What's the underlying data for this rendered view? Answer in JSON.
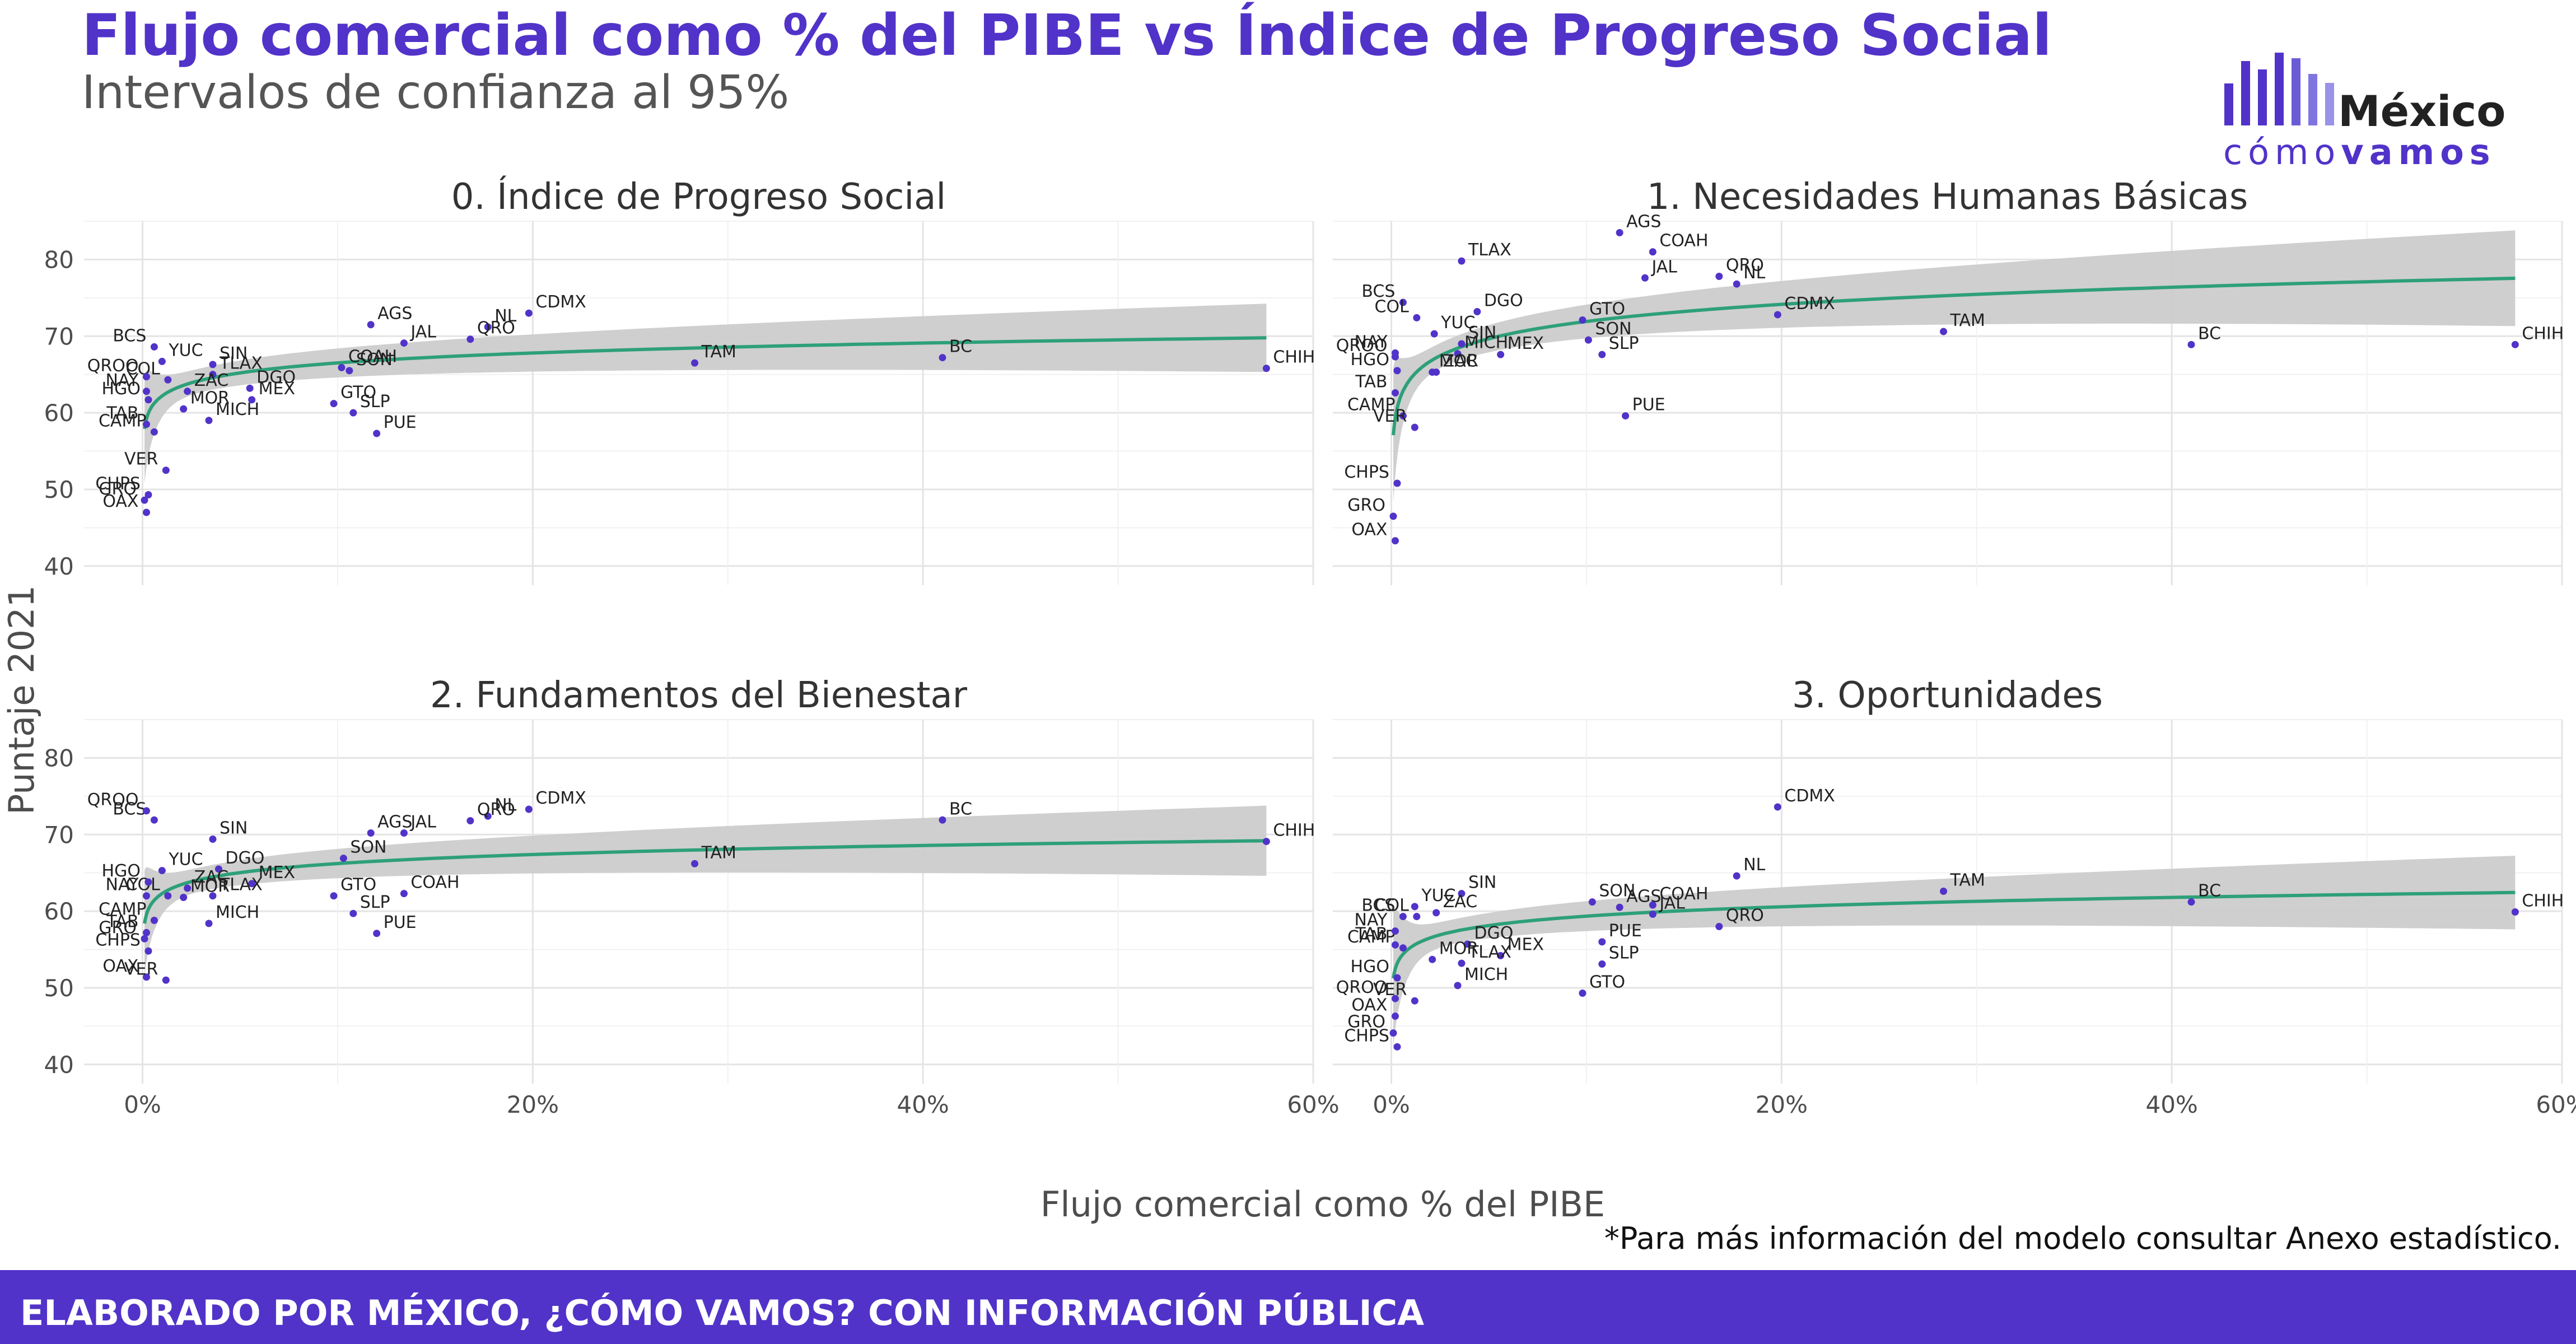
{
  "title": "Flujo comercial como % del PIBE vs Índice de Progreso Social",
  "subtitle": "Intervalos de confianza al 95%",
  "logo": {
    "word1": "México",
    "word2a": "cómo",
    "word2b": "vamos"
  },
  "note": "*Para más información del modelo consultar Anexo estadístico.",
  "footer": "ELABORADO POR MÉXICO, ¿CÓMO VAMOS? CON INFORMACIÓN PÚBLICA",
  "colors": {
    "accent": "#5133c9",
    "fit": "#2ea079",
    "band": "#cccccc",
    "point": "#5133c9"
  },
  "chart_data": {
    "type": "scatter",
    "xlabel": "Flujo comercial como % del PIBE",
    "ylabel": "Puntaje 2021",
    "xlim": [
      -3,
      60
    ],
    "ylim": [
      37.5,
      85
    ],
    "xticks": [
      0,
      20,
      40,
      60
    ],
    "xtick_labels": [
      "0%",
      "20%",
      "40%",
      "60%"
    ],
    "yticks": [
      40,
      50,
      60,
      70,
      80
    ],
    "grid": true,
    "panels": [
      {
        "title": "0. Índice de Progreso Social",
        "points": [
          {
            "label": "AGS",
            "x": 11.7,
            "y": 71.5
          },
          {
            "label": "BC",
            "x": 41.0,
            "y": 67.2
          },
          {
            "label": "BCS",
            "x": 0.6,
            "y": 68.6
          },
          {
            "label": "CAMP",
            "x": 0.6,
            "y": 57.5
          },
          {
            "label": "CDMX",
            "x": 19.8,
            "y": 73.0
          },
          {
            "label": "CHIH",
            "x": 57.6,
            "y": 65.8
          },
          {
            "label": "CHPS",
            "x": 0.3,
            "y": 49.3
          },
          {
            "label": "COAH",
            "x": 10.2,
            "y": 65.9
          },
          {
            "label": "COL",
            "x": 1.3,
            "y": 64.3
          },
          {
            "label": "DGO",
            "x": 5.5,
            "y": 63.2
          },
          {
            "label": "GRO",
            "x": 0.1,
            "y": 48.6
          },
          {
            "label": "GTO",
            "x": 9.8,
            "y": 61.2
          },
          {
            "label": "HGO",
            "x": 0.3,
            "y": 61.7
          },
          {
            "label": "JAL",
            "x": 13.4,
            "y": 69.1
          },
          {
            "label": "MEX",
            "x": 5.6,
            "y": 61.7
          },
          {
            "label": "MICH",
            "x": 3.4,
            "y": 59.0
          },
          {
            "label": "MOR",
            "x": 2.1,
            "y": 60.5
          },
          {
            "label": "NAY",
            "x": 0.2,
            "y": 62.8
          },
          {
            "label": "NL",
            "x": 17.7,
            "y": 71.2
          },
          {
            "label": "OAX",
            "x": 0.2,
            "y": 47.0
          },
          {
            "label": "PUE",
            "x": 12.0,
            "y": 57.3
          },
          {
            "label": "QRO",
            "x": 16.8,
            "y": 69.6
          },
          {
            "label": "QROO",
            "x": 0.2,
            "y": 64.7
          },
          {
            "label": "SIN",
            "x": 3.6,
            "y": 66.3
          },
          {
            "label": "SLP",
            "x": 10.8,
            "y": 60.0
          },
          {
            "label": "SON",
            "x": 10.6,
            "y": 65.5
          },
          {
            "label": "TAB",
            "x": 0.2,
            "y": 58.5
          },
          {
            "label": "TAM",
            "x": 28.3,
            "y": 66.5
          },
          {
            "label": "TLAX",
            "x": 3.6,
            "y": 65.0
          },
          {
            "label": "VER",
            "x": 1.2,
            "y": 52.5
          },
          {
            "label": "YUC",
            "x": 1.0,
            "y": 66.7
          },
          {
            "label": "ZAC",
            "x": 2.3,
            "y": 62.8
          }
        ],
        "fit": {
          "a": 62.2,
          "b": 1.87,
          "band_start": 6.8,
          "band_decay": 1.6,
          "band_slope": 0.054
        }
      },
      {
        "title": "1. Necesidades Humanas Básicas",
        "points": [
          {
            "label": "AGS",
            "x": 11.7,
            "y": 83.5
          },
          {
            "label": "BC",
            "x": 41.0,
            "y": 68.9
          },
          {
            "label": "BCS",
            "x": 0.6,
            "y": 74.4
          },
          {
            "label": "CAMP",
            "x": 0.6,
            "y": 59.6
          },
          {
            "label": "CDMX",
            "x": 19.8,
            "y": 72.8
          },
          {
            "label": "CHIH",
            "x": 57.6,
            "y": 68.9
          },
          {
            "label": "CHPS",
            "x": 0.3,
            "y": 50.8
          },
          {
            "label": "COAH",
            "x": 13.4,
            "y": 81.0
          },
          {
            "label": "COL",
            "x": 1.3,
            "y": 72.4
          },
          {
            "label": "DGO",
            "x": 4.4,
            "y": 73.2
          },
          {
            "label": "GRO",
            "x": 0.1,
            "y": 46.5
          },
          {
            "label": "GTO",
            "x": 9.8,
            "y": 72.1
          },
          {
            "label": "HGO",
            "x": 0.3,
            "y": 65.5
          },
          {
            "label": "JAL",
            "x": 13.0,
            "y": 77.6
          },
          {
            "label": "MEX",
            "x": 5.6,
            "y": 67.6
          },
          {
            "label": "MICH",
            "x": 3.4,
            "y": 67.7
          },
          {
            "label": "MOR",
            "x": 2.1,
            "y": 65.3
          },
          {
            "label": "NAY",
            "x": 0.2,
            "y": 67.8
          },
          {
            "label": "NL",
            "x": 17.7,
            "y": 76.8
          },
          {
            "label": "OAX",
            "x": 0.2,
            "y": 43.3
          },
          {
            "label": "PUE",
            "x": 12.0,
            "y": 59.6
          },
          {
            "label": "QRO",
            "x": 16.8,
            "y": 77.8
          },
          {
            "label": "QROO",
            "x": 0.2,
            "y": 67.3
          },
          {
            "label": "SIN",
            "x": 3.6,
            "y": 69.0
          },
          {
            "label": "SLP",
            "x": 10.8,
            "y": 67.6
          },
          {
            "label": "SON",
            "x": 10.1,
            "y": 69.5
          },
          {
            "label": "TAB",
            "x": 0.2,
            "y": 62.6
          },
          {
            "label": "TAM",
            "x": 28.3,
            "y": 70.6
          },
          {
            "label": "TLAX",
            "x": 3.6,
            "y": 79.8
          },
          {
            "label": "VER",
            "x": 1.2,
            "y": 58.1
          },
          {
            "label": "YUC",
            "x": 2.2,
            "y": 70.3
          },
          {
            "label": "ZAC",
            "x": 2.3,
            "y": 65.3
          }
        ],
        "fit": {
          "a": 64.5,
          "b": 3.22,
          "band_start": 9.0,
          "band_decay": 1.9,
          "band_slope": 0.085
        }
      },
      {
        "title": "2. Fundamentos del Bienestar",
        "points": [
          {
            "label": "AGS",
            "x": 11.7,
            "y": 70.2
          },
          {
            "label": "BC",
            "x": 41.0,
            "y": 71.9
          },
          {
            "label": "BCS",
            "x": 0.6,
            "y": 71.9
          },
          {
            "label": "CAMP",
            "x": 0.6,
            "y": 58.8
          },
          {
            "label": "CDMX",
            "x": 19.8,
            "y": 73.3
          },
          {
            "label": "CHIH",
            "x": 57.6,
            "y": 69.1
          },
          {
            "label": "CHPS",
            "x": 0.3,
            "y": 54.8
          },
          {
            "label": "COAH",
            "x": 13.4,
            "y": 62.3
          },
          {
            "label": "COL",
            "x": 1.3,
            "y": 62.0
          },
          {
            "label": "DGO",
            "x": 3.9,
            "y": 65.5
          },
          {
            "label": "GRO",
            "x": 0.1,
            "y": 56.4
          },
          {
            "label": "GTO",
            "x": 9.8,
            "y": 62.0
          },
          {
            "label": "HGO",
            "x": 0.3,
            "y": 63.8
          },
          {
            "label": "JAL",
            "x": 13.4,
            "y": 70.2
          },
          {
            "label": "MEX",
            "x": 5.6,
            "y": 63.6
          },
          {
            "label": "MICH",
            "x": 3.4,
            "y": 58.4
          },
          {
            "label": "MOR",
            "x": 2.1,
            "y": 61.8
          },
          {
            "label": "NAY",
            "x": 0.2,
            "y": 62.0
          },
          {
            "label": "NL",
            "x": 17.7,
            "y": 72.4
          },
          {
            "label": "OAX",
            "x": 0.2,
            "y": 51.4
          },
          {
            "label": "PUE",
            "x": 12.0,
            "y": 57.1
          },
          {
            "label": "QRO",
            "x": 16.8,
            "y": 71.8
          },
          {
            "label": "QROO",
            "x": 0.2,
            "y": 73.1
          },
          {
            "label": "SIN",
            "x": 3.6,
            "y": 69.4
          },
          {
            "label": "SLP",
            "x": 10.8,
            "y": 59.7
          },
          {
            "label": "SON",
            "x": 10.3,
            "y": 66.9
          },
          {
            "label": "TAB",
            "x": 0.2,
            "y": 57.2
          },
          {
            "label": "TAM",
            "x": 28.3,
            "y": 66.2
          },
          {
            "label": "TLAX",
            "x": 3.6,
            "y": 62.0
          },
          {
            "label": "VER",
            "x": 1.2,
            "y": 51.0
          },
          {
            "label": "YUC",
            "x": 1.0,
            "y": 65.3
          },
          {
            "label": "ZAC",
            "x": 2.3,
            "y": 63.0
          }
        ],
        "fit": {
          "a": 62.3,
          "b": 1.7,
          "band_start": 6.6,
          "band_decay": 1.6,
          "band_slope": 0.056
        }
      },
      {
        "title": "3. Oportunidades",
        "points": [
          {
            "label": "AGS",
            "x": 11.7,
            "y": 60.5
          },
          {
            "label": "BC",
            "x": 41.0,
            "y": 61.2
          },
          {
            "label": "BCS",
            "x": 0.6,
            "y": 59.3
          },
          {
            "label": "CAMP",
            "x": 0.6,
            "y": 55.2
          },
          {
            "label": "CDMX",
            "x": 19.8,
            "y": 73.6
          },
          {
            "label": "CHIH",
            "x": 57.6,
            "y": 59.9
          },
          {
            "label": "CHPS",
            "x": 0.3,
            "y": 42.3
          },
          {
            "label": "COAH",
            "x": 13.4,
            "y": 60.8
          },
          {
            "label": "COL",
            "x": 1.3,
            "y": 59.3
          },
          {
            "label": "DGO",
            "x": 3.9,
            "y": 55.7
          },
          {
            "label": "GRO",
            "x": 0.1,
            "y": 44.1
          },
          {
            "label": "GTO",
            "x": 9.8,
            "y": 49.3
          },
          {
            "label": "HGO",
            "x": 0.3,
            "y": 51.3
          },
          {
            "label": "JAL",
            "x": 13.4,
            "y": 59.6
          },
          {
            "label": "MEX",
            "x": 5.6,
            "y": 54.2
          },
          {
            "label": "MICH",
            "x": 3.4,
            "y": 50.3
          },
          {
            "label": "MOR",
            "x": 2.1,
            "y": 53.7
          },
          {
            "label": "NAY",
            "x": 0.2,
            "y": 57.4
          },
          {
            "label": "NL",
            "x": 17.7,
            "y": 64.6
          },
          {
            "label": "OAX",
            "x": 0.2,
            "y": 46.3
          },
          {
            "label": "PUE",
            "x": 10.8,
            "y": 56.0
          },
          {
            "label": "QRO",
            "x": 16.8,
            "y": 58.0
          },
          {
            "label": "QROO",
            "x": 0.2,
            "y": 48.6
          },
          {
            "label": "SIN",
            "x": 3.6,
            "y": 62.3
          },
          {
            "label": "SLP",
            "x": 10.8,
            "y": 53.1
          },
          {
            "label": "SON",
            "x": 10.3,
            "y": 61.2
          },
          {
            "label": "TAB",
            "x": 0.2,
            "y": 55.6
          },
          {
            "label": "TAM",
            "x": 28.3,
            "y": 62.6
          },
          {
            "label": "TLAX",
            "x": 3.6,
            "y": 53.2
          },
          {
            "label": "VER",
            "x": 1.2,
            "y": 48.3
          },
          {
            "label": "YUC",
            "x": 1.2,
            "y": 60.6
          },
          {
            "label": "ZAC",
            "x": 2.3,
            "y": 59.8
          }
        ],
        "fit": {
          "a": 55.3,
          "b": 1.76,
          "band_start": 9.0,
          "band_decay": 1.6,
          "band_slope": 0.06
        }
      }
    ]
  }
}
